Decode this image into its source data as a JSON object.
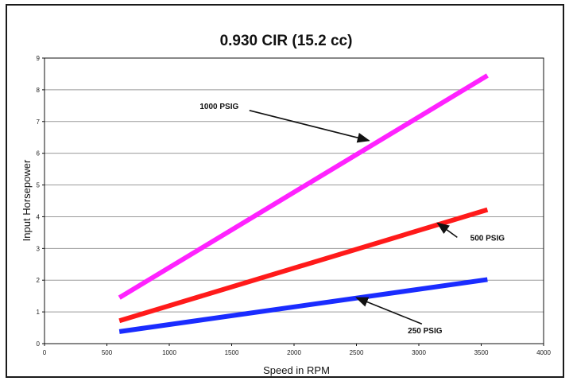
{
  "chart_data": {
    "type": "line",
    "title": "0.930 CIR (15.2 cc)",
    "xlabel": "Speed in RPM",
    "ylabel": "Input Horsepower",
    "xlim": [
      0,
      4000
    ],
    "ylim": [
      0,
      9
    ],
    "xticks": [
      0,
      500,
      1000,
      1500,
      2000,
      2500,
      3000,
      3500,
      4000
    ],
    "yticks": [
      0,
      1,
      2,
      3,
      4,
      5,
      6,
      7,
      8,
      9
    ],
    "grid": "horizontal",
    "legend": "none",
    "series": [
      {
        "name": "1000 PSIG",
        "color": "#ff22ff",
        "points": [
          [
            600,
            1.45
          ],
          [
            3550,
            8.45
          ]
        ],
        "label_at": [
          1400,
          7.4
        ],
        "arrow_to": [
          2600,
          6.4
        ]
      },
      {
        "name": "500 PSIG",
        "color": "#ff1a1a",
        "points": [
          [
            600,
            0.72
          ],
          [
            3550,
            4.22
          ]
        ],
        "label_at": [
          3550,
          3.25
        ],
        "arrow_to": [
          3150,
          3.8
        ]
      },
      {
        "name": "250 PSIG",
        "color": "#1a2cff",
        "points": [
          [
            600,
            0.38
          ],
          [
            3550,
            2.02
          ]
        ],
        "label_at": [
          3050,
          0.32
        ],
        "arrow_to": [
          2500,
          1.45
        ]
      }
    ]
  }
}
